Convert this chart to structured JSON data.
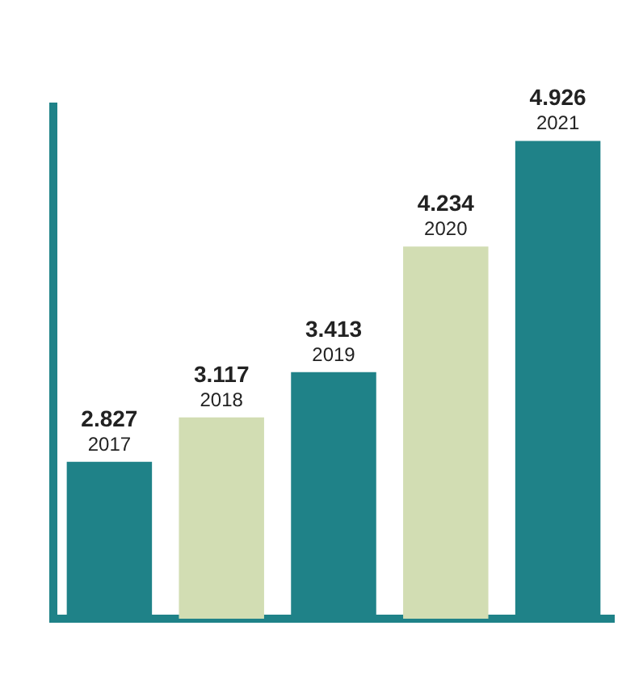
{
  "chart_data": {
    "type": "bar",
    "categories": [
      "2017",
      "2018",
      "2019",
      "2020",
      "2021"
    ],
    "values": [
      2.827,
      3.117,
      3.413,
      4.234,
      4.926
    ],
    "colors": [
      "#1f8288",
      "#d2ddb3",
      "#1f8288",
      "#d2ddb3",
      "#1f8288"
    ],
    "ylim": [
      1.8,
      5.15
    ],
    "data_labels": true,
    "grid": false,
    "legend": false
  }
}
